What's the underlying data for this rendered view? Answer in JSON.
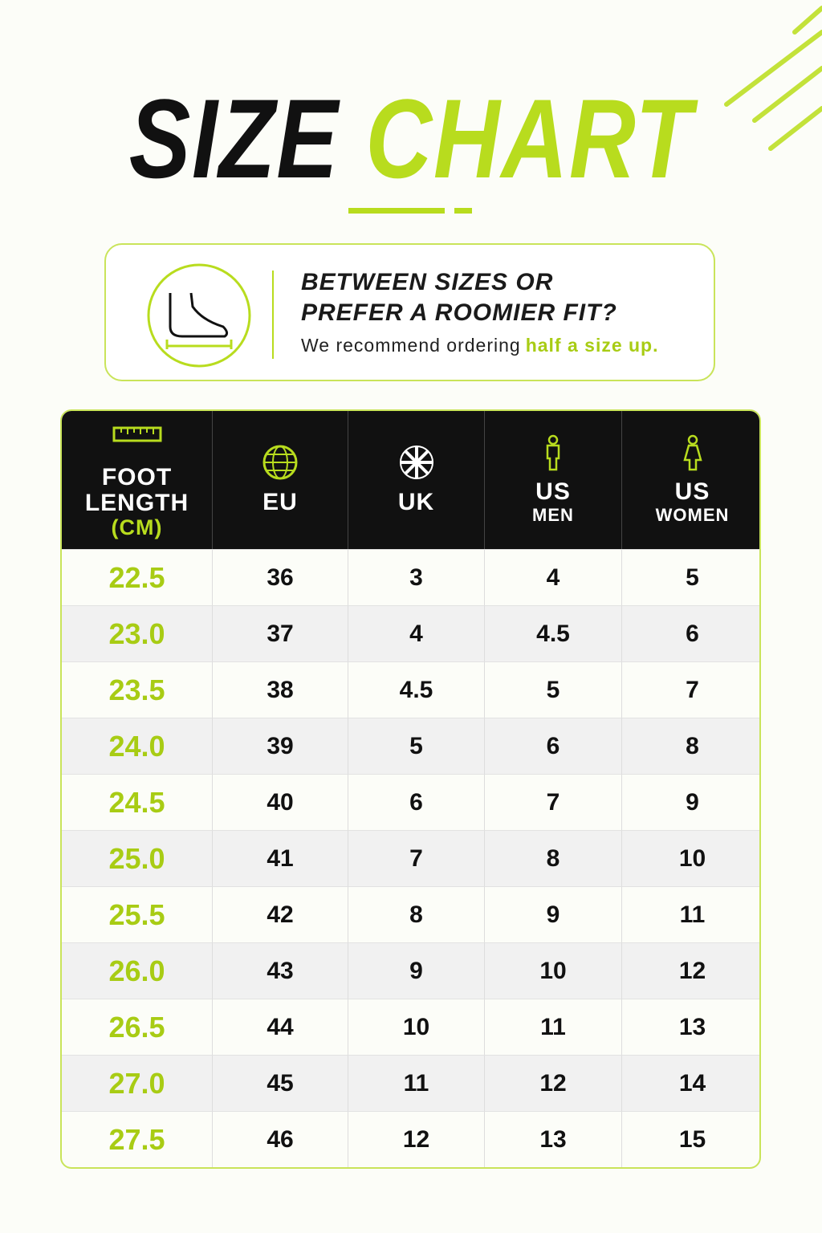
{
  "header": {
    "title_1": "SIZE",
    "title_2": "CHART"
  },
  "notice": {
    "heading_1": "BETWEEN SIZES OR",
    "heading_2": "PREFER A ROOMIER FIT?",
    "text": "We recommend ordering",
    "highlight": "half a size up."
  },
  "table": {
    "columns": [
      {
        "title": "FOOT\nLENGTH",
        "sub": "(CM)"
      },
      {
        "title": "EU"
      },
      {
        "title": "UK"
      },
      {
        "title": "US",
        "sub": "MEN"
      },
      {
        "title": "US",
        "sub": "WOMEN"
      }
    ],
    "rows": [
      [
        "22.5",
        "36",
        "3",
        "4",
        "5"
      ],
      [
        "23.0",
        "37",
        "4",
        "4.5",
        "6"
      ],
      [
        "23.5",
        "38",
        "4.5",
        "5",
        "7"
      ],
      [
        "24.0",
        "39",
        "5",
        "6",
        "8"
      ],
      [
        "24.5",
        "40",
        "6",
        "7",
        "9"
      ],
      [
        "25.0",
        "41",
        "7",
        "8",
        "10"
      ],
      [
        "25.5",
        "42",
        "8",
        "9",
        "11"
      ],
      [
        "26.0",
        "43",
        "9",
        "10",
        "12"
      ],
      [
        "26.5",
        "44",
        "10",
        "11",
        "13"
      ],
      [
        "27.0",
        "45",
        "11",
        "12",
        "14"
      ],
      [
        "27.5",
        "46",
        "12",
        "13",
        "15"
      ]
    ]
  }
}
